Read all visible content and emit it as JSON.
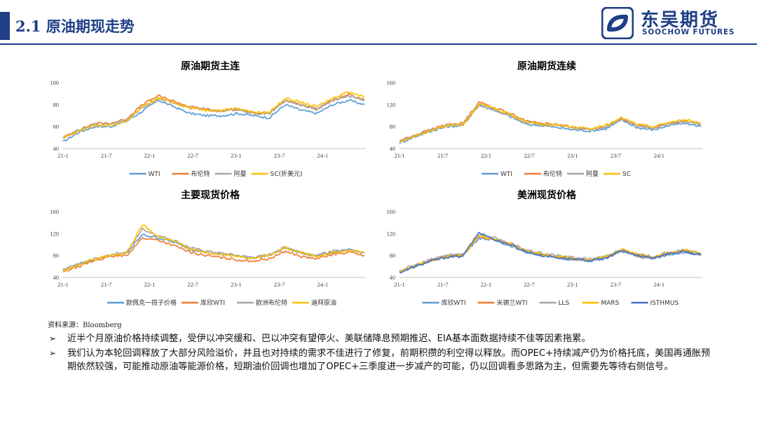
{
  "header": {
    "title": "2.1 原油期现走势",
    "logo_cn": "东吴期货",
    "logo_en": "SOOCHOW FUTURES"
  },
  "colors": {
    "brand": "#1f3f86",
    "blue": "#5b9bd5",
    "orange": "#ed7d31",
    "gray": "#a5a5a5",
    "yellow": "#ffc000",
    "navy": "#4472c4"
  },
  "chart_data": [
    {
      "type": "line",
      "title": "原油期货主连",
      "ylim": [
        40,
        100
      ],
      "yticks": [
        "100",
        "80",
        "60",
        "40"
      ],
      "xticks": [
        "21-1",
        "21-7",
        "22-1",
        "22-7",
        "23-1",
        "23-7",
        "24-1"
      ],
      "x": [
        "21-1",
        "21-4",
        "21-7",
        "21-10",
        "22-1",
        "22-3",
        "22-5",
        "22-7",
        "22-9",
        "22-11",
        "23-1",
        "23-3",
        "23-5",
        "23-7",
        "23-9",
        "23-11",
        "24-1",
        "24-3",
        "24-4",
        "24-5"
      ],
      "series": [
        {
          "name": "WTI",
          "color": "#5b9bd5",
          "values": [
            46,
            55,
            60,
            60,
            65,
            74,
            84,
            78,
            72,
            70,
            70,
            72,
            70,
            68,
            80,
            75,
            72,
            80,
            84,
            80
          ]
        },
        {
          "name": "布伦特",
          "color": "#ed7d31",
          "values": [
            50,
            57,
            63,
            63,
            67,
            80,
            88,
            83,
            78,
            76,
            74,
            76,
            72,
            72,
            84,
            80,
            76,
            84,
            89,
            84
          ]
        },
        {
          "name": "阿曼",
          "color": "#a5a5a5",
          "values": [
            50,
            57,
            62,
            62,
            66,
            77,
            85,
            82,
            77,
            75,
            74,
            76,
            72,
            72,
            84,
            79,
            76,
            84,
            88,
            84
          ]
        },
        {
          "name": "SC(折美元)",
          "color": "#ffc000",
          "values": [
            49,
            56,
            61,
            61,
            65,
            78,
            86,
            82,
            77,
            75,
            75,
            77,
            73,
            73,
            86,
            82,
            78,
            86,
            92,
            87
          ]
        }
      ]
    },
    {
      "type": "line",
      "title": "原油期货连续",
      "ylim": [
        40,
        160
      ],
      "yticks": [
        "160",
        "120",
        "80",
        "40"
      ],
      "xticks": [
        "21/1",
        "21/7",
        "22/1",
        "22/7",
        "23/1",
        "23/7",
        "24/1"
      ],
      "x": [
        "21-1",
        "21-4",
        "21-7",
        "21-10",
        "22-1",
        "22-3",
        "22-5",
        "22-7",
        "22-9",
        "22-11",
        "23-1",
        "23-3",
        "23-5",
        "23-7",
        "23-9",
        "23-11",
        "24-1",
        "24-3",
        "24-4",
        "24-5"
      ],
      "series": [
        {
          "name": "WTI",
          "color": "#5b9bd5",
          "values": [
            50,
            62,
            72,
            80,
            82,
            120,
            110,
            98,
            84,
            82,
            78,
            74,
            72,
            76,
            92,
            78,
            74,
            82,
            86,
            80
          ]
        },
        {
          "name": "布伦特",
          "color": "#ed7d31",
          "values": [
            54,
            65,
            75,
            84,
            86,
            125,
            114,
            104,
            90,
            86,
            84,
            78,
            75,
            80,
            94,
            82,
            78,
            86,
            90,
            84
          ]
        },
        {
          "name": "阿曼",
          "color": "#a5a5a5",
          "values": [
            53,
            64,
            74,
            82,
            84,
            118,
            110,
            100,
            88,
            84,
            82,
            78,
            75,
            80,
            93,
            82,
            78,
            86,
            89,
            84
          ]
        },
        {
          "name": "SC",
          "color": "#ffc000",
          "values": [
            52,
            63,
            73,
            82,
            84,
            122,
            112,
            102,
            88,
            84,
            83,
            79,
            76,
            82,
            96,
            84,
            80,
            88,
            92,
            87
          ]
        }
      ]
    },
    {
      "type": "line",
      "title": "主要现货价格",
      "ylim": [
        40,
        160
      ],
      "yticks": [
        "160",
        "120",
        "80",
        "40"
      ],
      "xticks": [
        "21-1",
        "21-7",
        "22-1",
        "22-7",
        "23-1",
        "23-7",
        "24-1"
      ],
      "x": [
        "21-1",
        "21-4",
        "21-7",
        "21-10",
        "22-1",
        "22-3",
        "22-5",
        "22-7",
        "22-9",
        "22-11",
        "23-1",
        "23-3",
        "23-5",
        "23-7",
        "23-9",
        "23-11",
        "24-1",
        "24-3",
        "24-4",
        "24-5"
      ],
      "series": [
        {
          "name": "欧佩克一揽子价格",
          "color": "#5b9bd5",
          "values": [
            53,
            64,
            73,
            80,
            84,
            118,
            112,
            104,
            92,
            86,
            82,
            80,
            76,
            80,
            94,
            84,
            80,
            86,
            90,
            85
          ]
        },
        {
          "name": "库欣WTI",
          "color": "#ed7d31",
          "values": [
            50,
            60,
            71,
            78,
            80,
            112,
            108,
            98,
            86,
            80,
            76,
            72,
            70,
            74,
            88,
            78,
            74,
            82,
            86,
            80
          ]
        },
        {
          "name": "欧洲布伦特",
          "color": "#a5a5a5",
          "values": [
            54,
            65,
            74,
            82,
            86,
            128,
            116,
            108,
            94,
            88,
            84,
            80,
            76,
            82,
            96,
            86,
            80,
            88,
            90,
            86
          ]
        },
        {
          "name": "迪拜原油",
          "color": "#ffc000",
          "values": [
            53,
            64,
            73,
            80,
            84,
            136,
            114,
            106,
            92,
            86,
            82,
            79,
            75,
            81,
            94,
            85,
            79,
            86,
            90,
            85
          ]
        }
      ]
    },
    {
      "type": "line",
      "title": "美洲现货价格",
      "ylim": [
        40,
        160
      ],
      "yticks": [
        "160",
        "120",
        "80",
        "40"
      ],
      "xticks": [
        "21-1",
        "21-7",
        "22-1",
        "22-7",
        "23-1",
        "23-7",
        "24-1"
      ],
      "x": [
        "21-1",
        "21-4",
        "21-7",
        "21-10",
        "22-1",
        "22-3",
        "22-5",
        "22-7",
        "22-9",
        "22-11",
        "23-1",
        "23-3",
        "23-5",
        "23-7",
        "23-9",
        "23-11",
        "24-1",
        "24-3",
        "24-4",
        "24-5"
      ],
      "series": [
        {
          "name": "库欣WTI",
          "color": "#5b9bd5",
          "values": [
            50,
            60,
            71,
            78,
            80,
            112,
            108,
            98,
            86,
            80,
            76,
            72,
            70,
            74,
            88,
            78,
            74,
            82,
            86,
            80
          ]
        },
        {
          "name": "米德兰WTI",
          "color": "#ed7d31",
          "values": [
            51,
            61,
            72,
            79,
            81,
            114,
            110,
            100,
            88,
            82,
            78,
            74,
            72,
            76,
            90,
            80,
            76,
            84,
            88,
            82
          ]
        },
        {
          "name": "LLS",
          "color": "#a5a5a5",
          "values": [
            52,
            63,
            73,
            81,
            83,
            118,
            112,
            102,
            90,
            84,
            80,
            76,
            74,
            78,
            92,
            82,
            78,
            86,
            90,
            84
          ]
        },
        {
          "name": "MARS",
          "color": "#ffc000",
          "values": [
            50,
            61,
            71,
            78,
            80,
            116,
            110,
            100,
            88,
            82,
            78,
            75,
            72,
            77,
            91,
            82,
            77,
            85,
            89,
            83
          ]
        },
        {
          "name": "ISTHMUS",
          "color": "#4472c4",
          "values": [
            49,
            60,
            70,
            77,
            79,
            122,
            109,
            99,
            87,
            80,
            76,
            73,
            71,
            75,
            89,
            80,
            76,
            84,
            87,
            81
          ]
        }
      ]
    }
  ],
  "source": "资料来源：Bloomberg",
  "bullets": [
    "近半个月原油价格持续调整，受伊以冲突缓和、巴以冲突有望停火、美联储降息预期推迟、EIA基本面数据持续不佳等因素拖累。",
    "我们认为本轮回调释放了大部分风险溢价，并且也对持续的需求不佳进行了修复，前期积攒的利空得以释放。而OPEC+持续减产仍为价格托底，美国再通胀预期依然较强，可能推动原油等能源价格，短期油价回调也增加了OPEC+三季度进一步减产的可能，仍以回调看多思路为主，但需要先等待右侧信号。"
  ]
}
